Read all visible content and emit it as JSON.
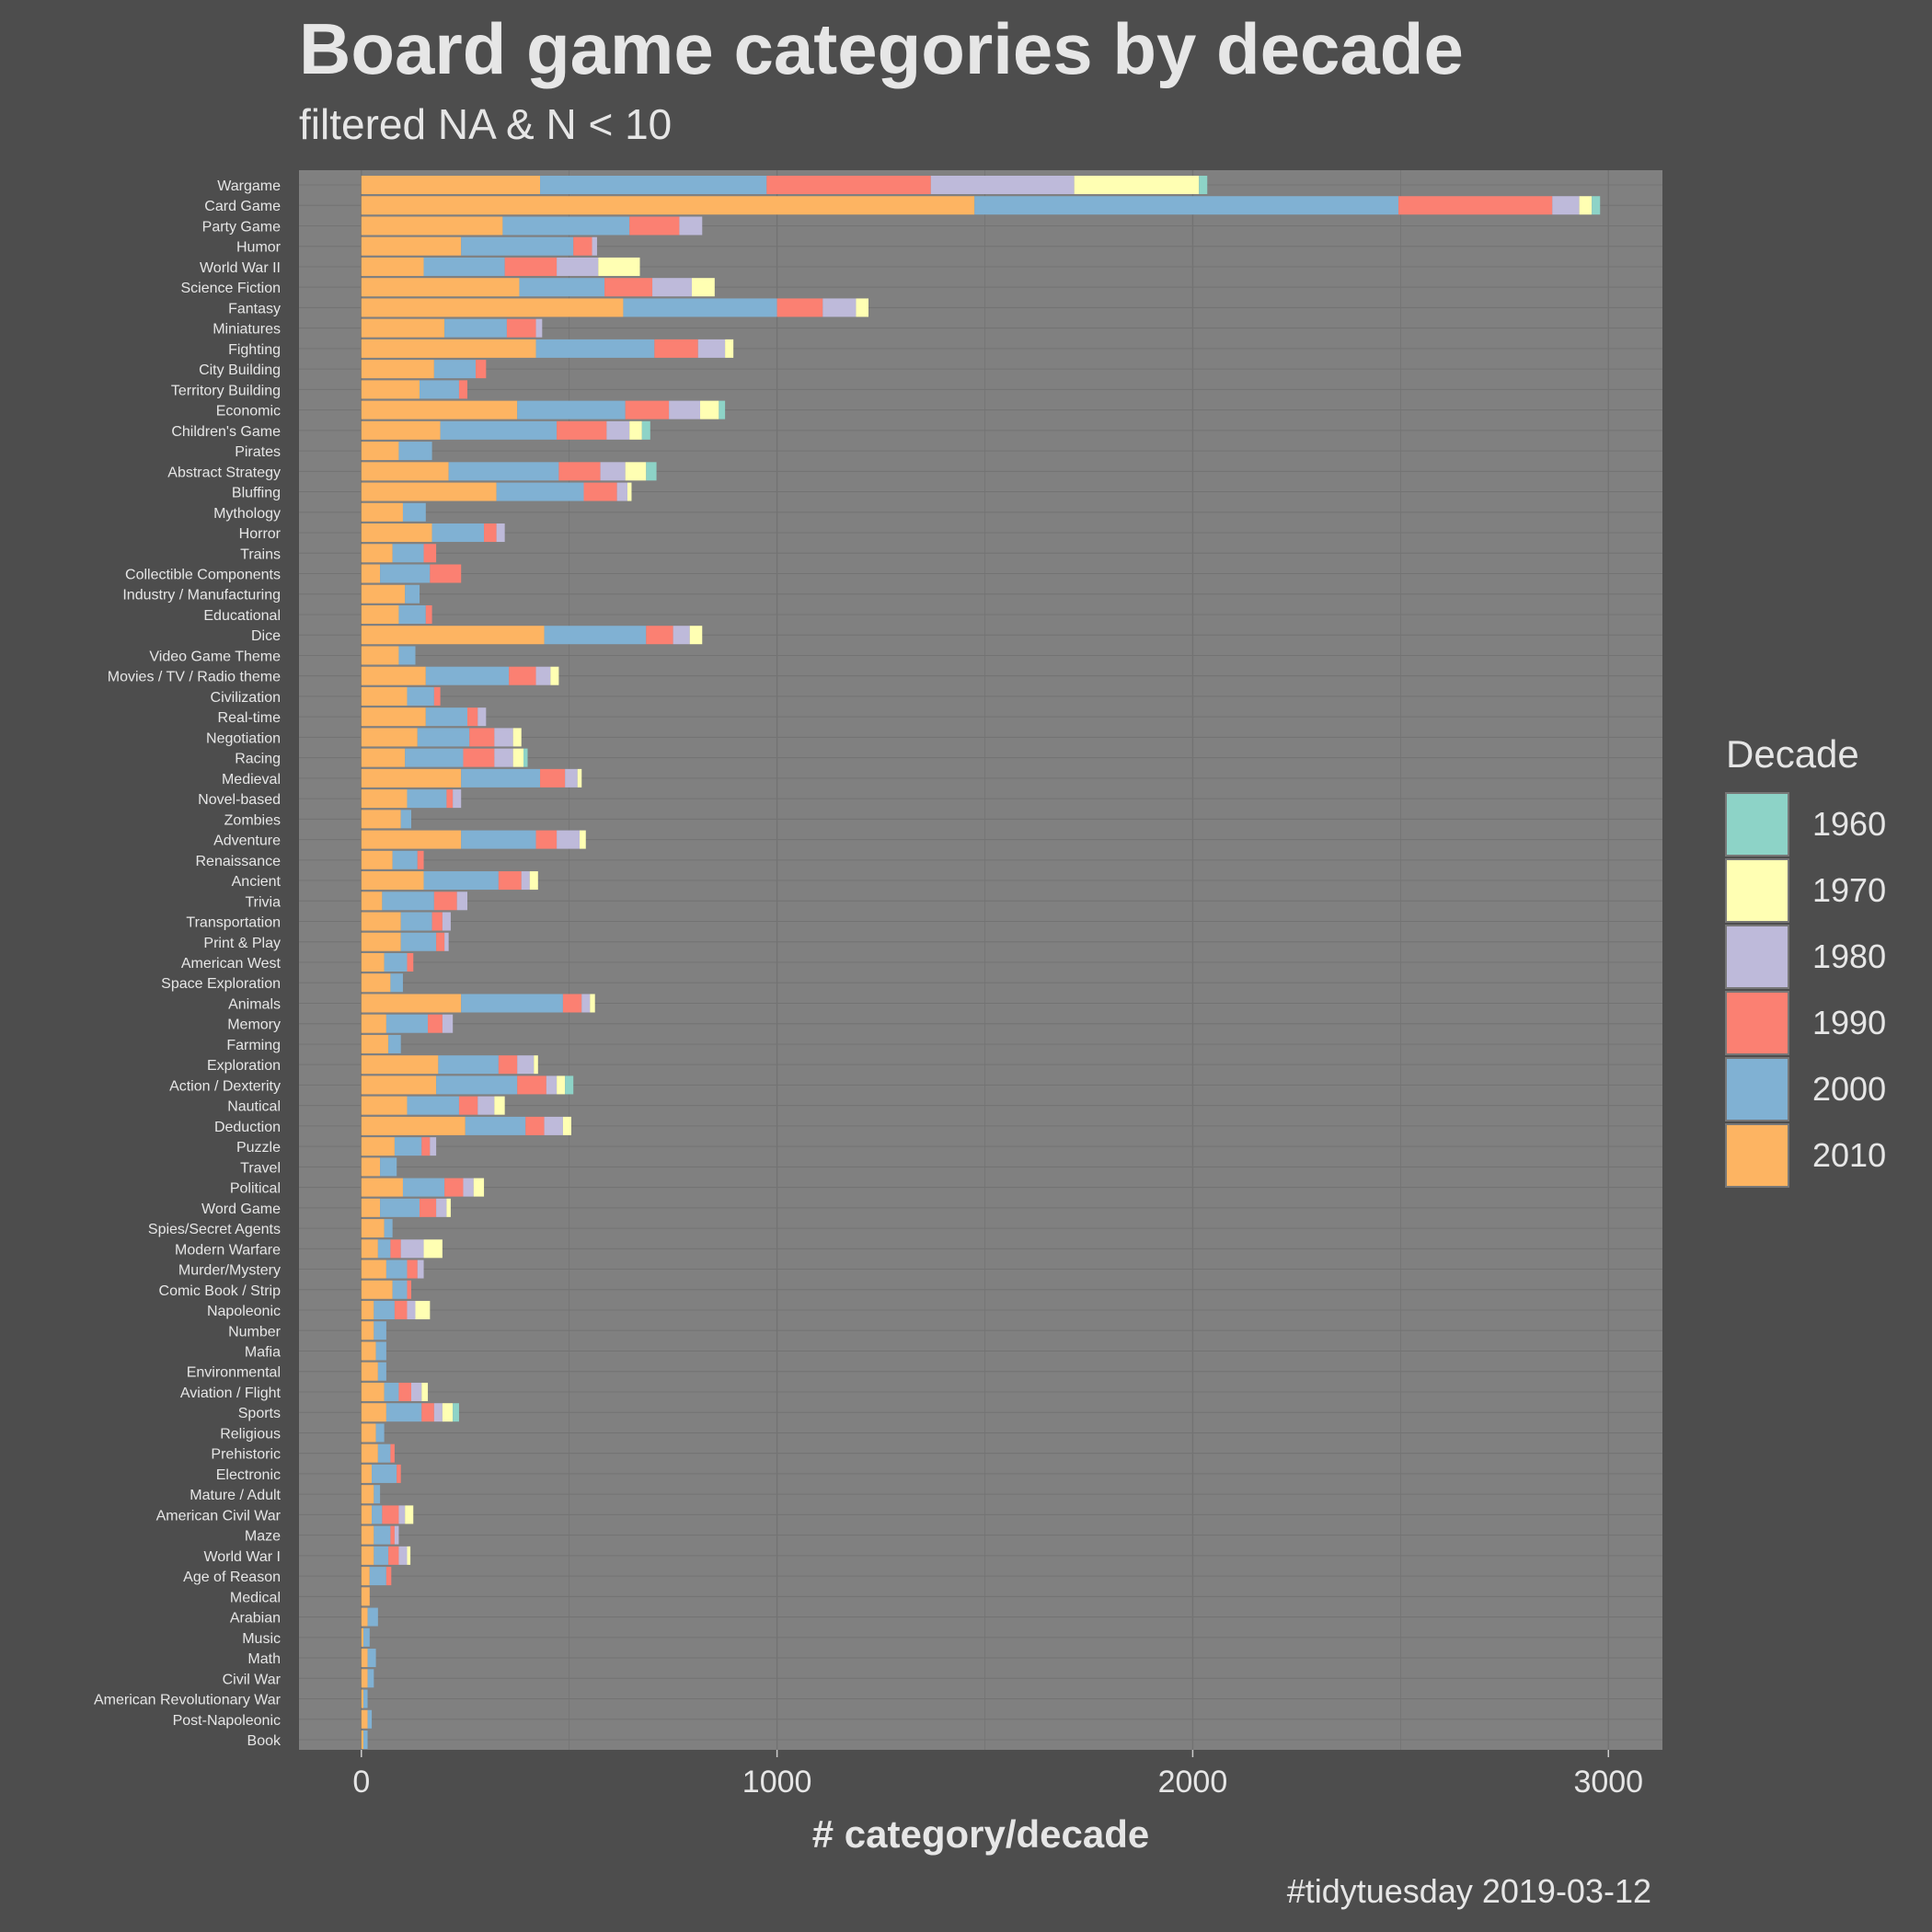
{
  "chart_data": {
    "type": "bar",
    "orientation": "horizontal",
    "stacked": true,
    "title": "Board game categories by decade",
    "subtitle": "filtered NA & N < 10",
    "xlabel": "# category/decade",
    "ylabel": "",
    "caption": "#tidytuesday 2019-03-12",
    "xlim": [
      -150,
      3130
    ],
    "xticks": [
      0,
      1000,
      2000,
      3000
    ],
    "grid": true,
    "legend": {
      "title": "Decade",
      "position": "right",
      "items": [
        {
          "label": "1960",
          "color": "#8dd3c7"
        },
        {
          "label": "1970",
          "color": "#ffffb3"
        },
        {
          "label": "1980",
          "color": "#bebada"
        },
        {
          "label": "1990",
          "color": "#fb8072"
        },
        {
          "label": "2000",
          "color": "#80b1d3"
        },
        {
          "label": "2010",
          "color": "#fdb462"
        }
      ]
    },
    "stack_order": [
      "2010",
      "2000",
      "1990",
      "1980",
      "1970",
      "1960"
    ],
    "categories": [
      {
        "name": "Wargame",
        "2010": 430,
        "2000": 545,
        "1990": 395,
        "1980": 345,
        "1970": 300,
        "1960": 20
      },
      {
        "name": "Card Game",
        "2010": 1475,
        "2000": 1020,
        "1990": 370,
        "1980": 65,
        "1970": 30,
        "1960": 20
      },
      {
        "name": "Party Game",
        "2010": 340,
        "2000": 305,
        "1990": 120,
        "1980": 55,
        "1970": 0,
        "1960": 0
      },
      {
        "name": "Humor",
        "2010": 240,
        "2000": 270,
        "1990": 45,
        "1980": 12,
        "1970": 0,
        "1960": 0
      },
      {
        "name": "World War II",
        "2010": 150,
        "2000": 195,
        "1990": 125,
        "1980": 100,
        "1970": 100,
        "1960": 0
      },
      {
        "name": "Science Fiction",
        "2010": 380,
        "2000": 205,
        "1990": 115,
        "1980": 95,
        "1970": 55,
        "1960": 0
      },
      {
        "name": "Fantasy",
        "2010": 630,
        "2000": 370,
        "1990": 110,
        "1980": 80,
        "1970": 30,
        "1960": 0
      },
      {
        "name": "Miniatures",
        "2010": 200,
        "2000": 150,
        "1990": 70,
        "1980": 15,
        "1970": 0,
        "1960": 0
      },
      {
        "name": "Fighting",
        "2010": 420,
        "2000": 285,
        "1990": 105,
        "1980": 65,
        "1970": 20,
        "1960": 0
      },
      {
        "name": "City Building",
        "2010": 175,
        "2000": 100,
        "1990": 25,
        "1980": 0,
        "1970": 0,
        "1960": 0
      },
      {
        "name": "Territory Building",
        "2010": 140,
        "2000": 95,
        "1990": 20,
        "1980": 0,
        "1970": 0,
        "1960": 0
      },
      {
        "name": "Economic",
        "2010": 375,
        "2000": 260,
        "1990": 105,
        "1980": 75,
        "1970": 45,
        "1960": 15
      },
      {
        "name": "Children's Game",
        "2010": 190,
        "2000": 280,
        "1990": 120,
        "1980": 55,
        "1970": 30,
        "1960": 20
      },
      {
        "name": "Pirates",
        "2010": 90,
        "2000": 80,
        "1990": 0,
        "1980": 0,
        "1970": 0,
        "1960": 0
      },
      {
        "name": "Abstract Strategy",
        "2010": 210,
        "2000": 265,
        "1990": 100,
        "1980": 60,
        "1970": 50,
        "1960": 25
      },
      {
        "name": "Bluffing",
        "2010": 325,
        "2000": 210,
        "1990": 80,
        "1980": 25,
        "1970": 10,
        "1960": 0
      },
      {
        "name": "Mythology",
        "2010": 100,
        "2000": 55,
        "1990": 0,
        "1980": 0,
        "1970": 0,
        "1960": 0
      },
      {
        "name": "Horror",
        "2010": 170,
        "2000": 125,
        "1990": 30,
        "1980": 20,
        "1970": 0,
        "1960": 0
      },
      {
        "name": "Trains",
        "2010": 75,
        "2000": 75,
        "1990": 30,
        "1980": 0,
        "1970": 0,
        "1960": 0
      },
      {
        "name": "Collectible Components",
        "2010": 45,
        "2000": 120,
        "1990": 75,
        "1980": 0,
        "1970": 0,
        "1960": 0
      },
      {
        "name": "Industry / Manufacturing",
        "2010": 105,
        "2000": 35,
        "1990": 0,
        "1980": 0,
        "1970": 0,
        "1960": 0
      },
      {
        "name": "Educational",
        "2010": 90,
        "2000": 65,
        "1990": 15,
        "1980": 0,
        "1970": 0,
        "1960": 0
      },
      {
        "name": "Dice",
        "2010": 440,
        "2000": 245,
        "1990": 65,
        "1980": 40,
        "1970": 30,
        "1960": 0
      },
      {
        "name": "Video Game Theme",
        "2010": 90,
        "2000": 40,
        "1990": 0,
        "1980": 0,
        "1970": 0,
        "1960": 0
      },
      {
        "name": "Movies / TV / Radio theme",
        "2010": 155,
        "2000": 200,
        "1990": 65,
        "1980": 35,
        "1970": 20,
        "1960": 0
      },
      {
        "name": "Civilization",
        "2010": 110,
        "2000": 65,
        "1990": 15,
        "1980": 0,
        "1970": 0,
        "1960": 0
      },
      {
        "name": "Real-time",
        "2010": 155,
        "2000": 100,
        "1990": 25,
        "1980": 20,
        "1970": 0,
        "1960": 0
      },
      {
        "name": "Negotiation",
        "2010": 135,
        "2000": 125,
        "1990": 60,
        "1980": 45,
        "1970": 20,
        "1960": 0
      },
      {
        "name": "Racing",
        "2010": 105,
        "2000": 140,
        "1990": 75,
        "1980": 45,
        "1970": 25,
        "1960": 10
      },
      {
        "name": "Medieval",
        "2010": 240,
        "2000": 190,
        "1990": 60,
        "1980": 30,
        "1970": 10,
        "1960": 0
      },
      {
        "name": "Novel-based",
        "2010": 110,
        "2000": 95,
        "1990": 15,
        "1980": 20,
        "1970": 0,
        "1960": 0
      },
      {
        "name": "Zombies",
        "2010": 95,
        "2000": 25,
        "1990": 0,
        "1980": 0,
        "1970": 0,
        "1960": 0
      },
      {
        "name": "Adventure",
        "2010": 240,
        "2000": 180,
        "1990": 50,
        "1980": 55,
        "1970": 15,
        "1960": 0
      },
      {
        "name": "Renaissance",
        "2010": 75,
        "2000": 60,
        "1990": 15,
        "1980": 0,
        "1970": 0,
        "1960": 0
      },
      {
        "name": "Ancient",
        "2010": 150,
        "2000": 180,
        "1990": 55,
        "1980": 20,
        "1970": 20,
        "1960": 0
      },
      {
        "name": "Trivia",
        "2010": 50,
        "2000": 125,
        "1990": 55,
        "1980": 25,
        "1970": 0,
        "1960": 0
      },
      {
        "name": "Transportation",
        "2010": 95,
        "2000": 75,
        "1990": 25,
        "1980": 20,
        "1970": 0,
        "1960": 0
      },
      {
        "name": "Print & Play",
        "2010": 95,
        "2000": 85,
        "1990": 20,
        "1980": 10,
        "1970": 0,
        "1960": 0
      },
      {
        "name": "American West",
        "2010": 55,
        "2000": 55,
        "1990": 15,
        "1980": 0,
        "1970": 0,
        "1960": 0
      },
      {
        "name": "Space Exploration",
        "2010": 70,
        "2000": 30,
        "1990": 0,
        "1980": 0,
        "1970": 0,
        "1960": 0
      },
      {
        "name": "Animals",
        "2010": 240,
        "2000": 245,
        "1990": 45,
        "1980": 20,
        "1970": 12,
        "1960": 0
      },
      {
        "name": "Memory",
        "2010": 60,
        "2000": 100,
        "1990": 35,
        "1980": 25,
        "1970": 0,
        "1960": 0
      },
      {
        "name": "Farming",
        "2010": 65,
        "2000": 30,
        "1990": 0,
        "1980": 0,
        "1970": 0,
        "1960": 0
      },
      {
        "name": "Exploration",
        "2010": 185,
        "2000": 145,
        "1990": 45,
        "1980": 40,
        "1970": 10,
        "1960": 0
      },
      {
        "name": "Action / Dexterity",
        "2010": 180,
        "2000": 195,
        "1990": 70,
        "1980": 25,
        "1970": 20,
        "1960": 20
      },
      {
        "name": "Nautical",
        "2010": 110,
        "2000": 125,
        "1990": 45,
        "1980": 40,
        "1970": 25,
        "1960": 0
      },
      {
        "name": "Deduction",
        "2010": 250,
        "2000": 145,
        "1990": 45,
        "1980": 45,
        "1970": 20,
        "1960": 0
      },
      {
        "name": "Puzzle",
        "2010": 80,
        "2000": 65,
        "1990": 20,
        "1980": 15,
        "1970": 0,
        "1960": 0
      },
      {
        "name": "Travel",
        "2010": 45,
        "2000": 40,
        "1990": 0,
        "1980": 0,
        "1970": 0,
        "1960": 0
      },
      {
        "name": "Political",
        "2010": 100,
        "2000": 100,
        "1990": 45,
        "1980": 25,
        "1970": 25,
        "1960": 0
      },
      {
        "name": "Word Game",
        "2010": 45,
        "2000": 95,
        "1990": 40,
        "1980": 25,
        "1970": 10,
        "1960": 0
      },
      {
        "name": "Spies/Secret Agents",
        "2010": 55,
        "2000": 20,
        "1990": 0,
        "1980": 0,
        "1970": 0,
        "1960": 0
      },
      {
        "name": "Modern Warfare",
        "2010": 40,
        "2000": 30,
        "1990": 25,
        "1980": 55,
        "1970": 45,
        "1960": 0
      },
      {
        "name": "Murder/Mystery",
        "2010": 60,
        "2000": 50,
        "1990": 25,
        "1980": 15,
        "1970": 0,
        "1960": 0
      },
      {
        "name": "Comic Book / Strip",
        "2010": 75,
        "2000": 35,
        "1990": 10,
        "1980": 0,
        "1970": 0,
        "1960": 0
      },
      {
        "name": "Napoleonic",
        "2010": 30,
        "2000": 50,
        "1990": 30,
        "1980": 20,
        "1970": 35,
        "1960": 0
      },
      {
        "name": "Number",
        "2010": 30,
        "2000": 30,
        "1990": 0,
        "1980": 0,
        "1970": 0,
        "1960": 0
      },
      {
        "name": "Mafia",
        "2010": 35,
        "2000": 25,
        "1990": 0,
        "1980": 0,
        "1970": 0,
        "1960": 0
      },
      {
        "name": "Environmental",
        "2010": 40,
        "2000": 20,
        "1990": 0,
        "1980": 0,
        "1970": 0,
        "1960": 0
      },
      {
        "name": "Aviation / Flight",
        "2010": 55,
        "2000": 35,
        "1990": 30,
        "1980": 25,
        "1970": 15,
        "1960": 0
      },
      {
        "name": "Sports",
        "2010": 60,
        "2000": 85,
        "1990": 30,
        "1980": 20,
        "1970": 25,
        "1960": 15
      },
      {
        "name": "Religious",
        "2010": 35,
        "2000": 20,
        "1990": 0,
        "1980": 0,
        "1970": 0,
        "1960": 0
      },
      {
        "name": "Prehistoric",
        "2010": 40,
        "2000": 30,
        "1990": 10,
        "1980": 0,
        "1970": 0,
        "1960": 0
      },
      {
        "name": "Electronic",
        "2010": 25,
        "2000": 60,
        "1990": 10,
        "1980": 0,
        "1970": 0,
        "1960": 0
      },
      {
        "name": "Mature / Adult",
        "2010": 30,
        "2000": 15,
        "1990": 0,
        "1980": 0,
        "1970": 0,
        "1960": 0
      },
      {
        "name": "American Civil War",
        "2010": 25,
        "2000": 25,
        "1990": 40,
        "1980": 15,
        "1970": 20,
        "1960": 0
      },
      {
        "name": "Maze",
        "2010": 30,
        "2000": 40,
        "1990": 10,
        "1980": 10,
        "1970": 0,
        "1960": 0
      },
      {
        "name": "World War I",
        "2010": 30,
        "2000": 35,
        "1990": 25,
        "1980": 20,
        "1970": 8,
        "1960": 0
      },
      {
        "name": "Age of Reason",
        "2010": 20,
        "2000": 40,
        "1990": 12,
        "1980": 0,
        "1970": 0,
        "1960": 0
      },
      {
        "name": "Medical",
        "2010": 20,
        "2000": 0,
        "1990": 0,
        "1980": 0,
        "1970": 0,
        "1960": 0
      },
      {
        "name": "Arabian",
        "2010": 15,
        "2000": 25,
        "1990": 0,
        "1980": 0,
        "1970": 0,
        "1960": 0
      },
      {
        "name": "Music",
        "2010": 5,
        "2000": 15,
        "1990": 0,
        "1980": 0,
        "1970": 0,
        "1960": 0
      },
      {
        "name": "Math",
        "2010": 15,
        "2000": 20,
        "1990": 0,
        "1980": 0,
        "1970": 0,
        "1960": 0
      },
      {
        "name": "Civil War",
        "2010": 15,
        "2000": 15,
        "1990": 0,
        "1980": 0,
        "1970": 0,
        "1960": 0
      },
      {
        "name": "American Revolutionary War",
        "2010": 5,
        "2000": 10,
        "1990": 0,
        "1980": 0,
        "1970": 0,
        "1960": 0
      },
      {
        "name": "Post-Napoleonic",
        "2010": 15,
        "2000": 10,
        "1990": 0,
        "1980": 0,
        "1970": 0,
        "1960": 0
      },
      {
        "name": "Book",
        "2010": 5,
        "2000": 10,
        "1990": 0,
        "1980": 0,
        "1970": 0,
        "1960": 0
      }
    ]
  }
}
